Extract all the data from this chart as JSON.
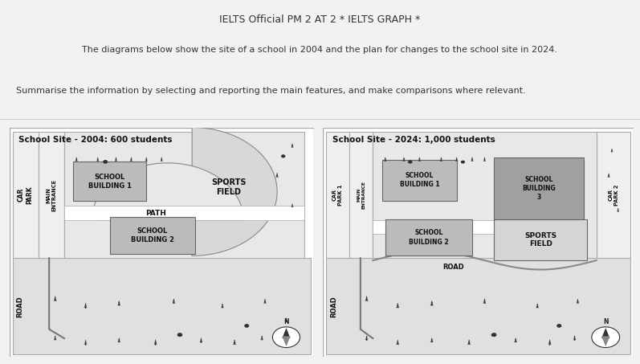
{
  "title": "IELTS Official PM 2 AT 2 * IELTS GRAPH *",
  "subtitle1": "The diagrams below show the site of a school in 2004 and the plan for changes to the school site in 2024.",
  "subtitle2": "Summarise the information by selecting and reporting the main features, and make comparisons where relevant.",
  "map1_title": "School Site - 2004: 600 students",
  "map2_title": "School Site - 2024: 1,000 students",
  "page_bg": "#f2f2f2",
  "white": "#ffffff",
  "light_gray": "#e8e8e8",
  "mid_gray": "#c8c8c8",
  "dark_gray": "#999999",
  "building_gray": "#bbbbbb",
  "building_dark": "#aaaaaa",
  "sports_gray": "#d5d5d5",
  "text_dark": "#222222",
  "border_col": "#aaaaaa"
}
